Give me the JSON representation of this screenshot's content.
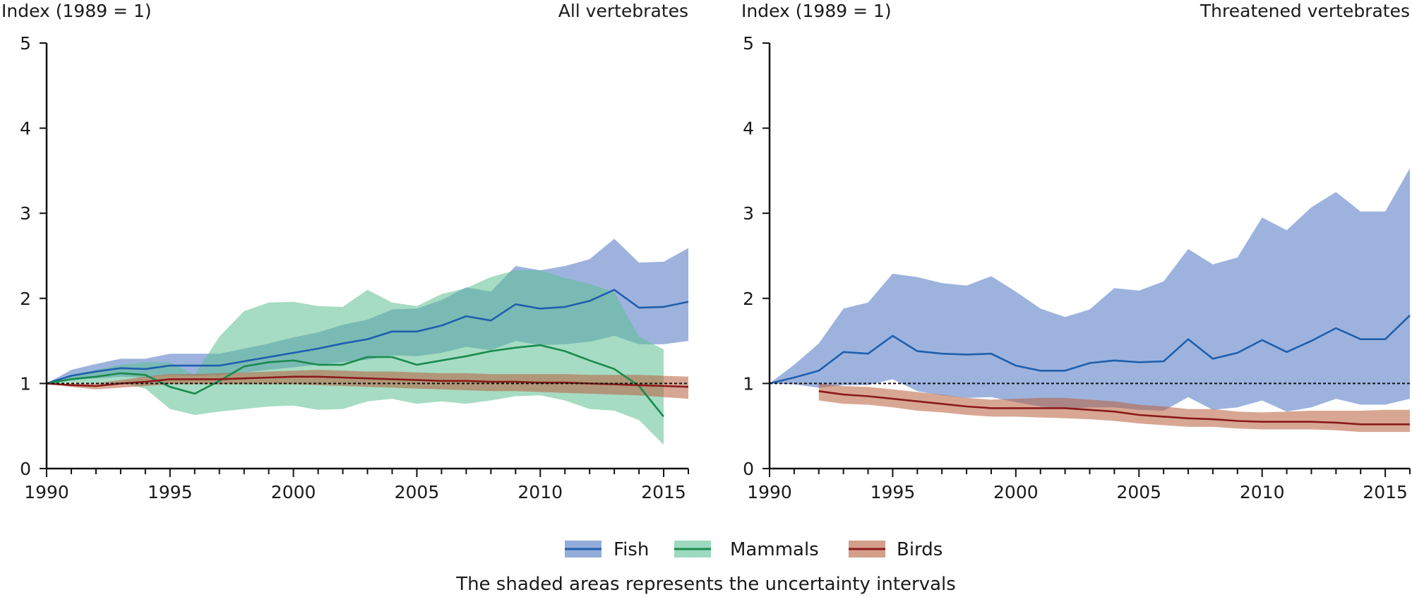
{
  "chart_data": [
    {
      "type": "line",
      "title": "All vertebrates",
      "ylabel": "Index (1989 = 1)",
      "xlabel": "",
      "xlim": [
        1990,
        2016
      ],
      "ylim": [
        0,
        5
      ],
      "xticks": [
        1990,
        1995,
        2000,
        2005,
        2010,
        2015
      ],
      "yticks": [
        0,
        1,
        2,
        3,
        4,
        5
      ],
      "reference_line": 1,
      "series": [
        {
          "name": "Fish",
          "color": "#1f5fad",
          "band_color": "#4d74c2",
          "x": [
            1990,
            1991,
            1992,
            1993,
            1994,
            1995,
            1996,
            1997,
            1998,
            1999,
            2000,
            2001,
            2002,
            2003,
            2004,
            2005,
            2006,
            2007,
            2008,
            2009,
            2010,
            2011,
            2012,
            2013,
            2014,
            2015,
            2016
          ],
          "values": [
            1.0,
            1.09,
            1.14,
            1.18,
            1.17,
            1.21,
            1.21,
            1.21,
            1.26,
            1.31,
            1.36,
            1.41,
            1.47,
            1.52,
            1.61,
            1.61,
            1.68,
            1.79,
            1.74,
            1.93,
            1.88,
            1.9,
            1.97,
            2.1,
            1.89,
            1.9,
            1.96
          ],
          "lower": [
            1.0,
            1.04,
            1.06,
            1.08,
            1.07,
            1.1,
            1.09,
            1.1,
            1.13,
            1.16,
            1.19,
            1.22,
            1.25,
            1.28,
            1.33,
            1.32,
            1.36,
            1.43,
            1.39,
            1.5,
            1.45,
            1.46,
            1.49,
            1.56,
            1.46,
            1.46,
            1.5
          ],
          "upper": [
            1.0,
            1.16,
            1.23,
            1.29,
            1.29,
            1.35,
            1.35,
            1.35,
            1.41,
            1.47,
            1.54,
            1.6,
            1.69,
            1.75,
            1.87,
            1.88,
            1.98,
            2.13,
            2.08,
            2.38,
            2.33,
            2.38,
            2.46,
            2.7,
            2.42,
            2.43,
            2.59
          ]
        },
        {
          "name": "Mammals",
          "color": "#1a8a4e",
          "band_color": "#5cbf92",
          "x": [
            1990,
            1991,
            1992,
            1993,
            1994,
            1995,
            1996,
            1997,
            1998,
            1999,
            2000,
            2001,
            2002,
            2003,
            2004,
            2005,
            2006,
            2007,
            2008,
            2009,
            2010,
            2011,
            2012,
            2013,
            2014,
            2015
          ],
          "values": [
            1.0,
            1.05,
            1.08,
            1.12,
            1.1,
            0.96,
            0.88,
            1.03,
            1.2,
            1.25,
            1.27,
            1.22,
            1.22,
            1.31,
            1.31,
            1.22,
            1.27,
            1.32,
            1.38,
            1.42,
            1.45,
            1.38,
            1.27,
            1.17,
            0.97,
            0.61
          ],
          "lower": [
            1.0,
            1.01,
            1.0,
            1.01,
            0.94,
            0.7,
            0.63,
            0.67,
            0.7,
            0.73,
            0.74,
            0.69,
            0.7,
            0.79,
            0.82,
            0.76,
            0.79,
            0.76,
            0.8,
            0.85,
            0.86,
            0.8,
            0.7,
            0.68,
            0.57,
            0.28
          ],
          "upper": [
            1.0,
            1.1,
            1.16,
            1.22,
            1.25,
            1.25,
            1.1,
            1.55,
            1.85,
            1.95,
            1.96,
            1.91,
            1.9,
            2.1,
            1.95,
            1.91,
            2.05,
            2.12,
            2.25,
            2.33,
            2.33,
            2.24,
            2.17,
            2.07,
            1.55,
            1.4
          ]
        },
        {
          "name": "Birds",
          "color": "#8b1a1a",
          "band_color": "#b85f3c",
          "x": [
            1990,
            1991,
            1992,
            1993,
            1994,
            1995,
            1996,
            1997,
            1998,
            1999,
            2000,
            2001,
            2002,
            2003,
            2004,
            2005,
            2006,
            2007,
            2008,
            2009,
            2010,
            2011,
            2012,
            2013,
            2014,
            2015,
            2016
          ],
          "values": [
            1.0,
            0.98,
            0.97,
            1.0,
            1.02,
            1.05,
            1.05,
            1.05,
            1.06,
            1.07,
            1.08,
            1.08,
            1.07,
            1.06,
            1.05,
            1.04,
            1.03,
            1.03,
            1.02,
            1.02,
            1.01,
            1.01,
            1.0,
            0.99,
            0.98,
            0.97,
            0.96
          ],
          "lower": [
            1.0,
            0.96,
            0.93,
            0.95,
            0.97,
            0.99,
            0.99,
            0.99,
            0.99,
            0.99,
            0.99,
            0.98,
            0.97,
            0.96,
            0.95,
            0.94,
            0.93,
            0.92,
            0.91,
            0.91,
            0.9,
            0.89,
            0.88,
            0.87,
            0.86,
            0.84,
            0.82
          ],
          "upper": [
            1.0,
            1.0,
            1.0,
            1.04,
            1.08,
            1.11,
            1.11,
            1.12,
            1.13,
            1.14,
            1.15,
            1.16,
            1.15,
            1.14,
            1.14,
            1.13,
            1.12,
            1.12,
            1.11,
            1.11,
            1.11,
            1.11,
            1.1,
            1.1,
            1.1,
            1.09,
            1.08
          ]
        }
      ]
    },
    {
      "type": "line",
      "title": "Threatened vertebrates",
      "ylabel": "Index (1989 = 1)",
      "xlabel": "",
      "xlim": [
        1990,
        2016
      ],
      "ylim": [
        0,
        5
      ],
      "xticks": [
        1990,
        1995,
        2000,
        2005,
        2010,
        2015
      ],
      "yticks": [
        0,
        1,
        2,
        3,
        4,
        5
      ],
      "reference_line": 1,
      "series": [
        {
          "name": "Fish",
          "color": "#1f5fad",
          "band_color": "#4d74c2",
          "x": [
            1990,
            1991,
            1992,
            1993,
            1994,
            1995,
            1996,
            1997,
            1998,
            1999,
            2000,
            2001,
            2002,
            2003,
            2004,
            2005,
            2006,
            2007,
            2008,
            2009,
            2010,
            2011,
            2012,
            2013,
            2014,
            2015,
            2016
          ],
          "values": [
            1.0,
            1.07,
            1.15,
            1.37,
            1.35,
            1.56,
            1.38,
            1.35,
            1.34,
            1.35,
            1.21,
            1.15,
            1.15,
            1.24,
            1.27,
            1.25,
            1.26,
            1.52,
            1.29,
            1.36,
            1.51,
            1.37,
            1.5,
            1.65,
            1.52,
            1.52,
            1.8
          ],
          "lower": [
            1.0,
            0.99,
            0.95,
            0.98,
            0.98,
            1.05,
            0.91,
            0.86,
            0.83,
            0.84,
            0.78,
            0.73,
            0.7,
            0.72,
            0.72,
            0.69,
            0.68,
            0.84,
            0.69,
            0.72,
            0.8,
            0.67,
            0.72,
            0.82,
            0.75,
            0.75,
            0.82
          ],
          "upper": [
            1.0,
            1.22,
            1.47,
            1.88,
            1.95,
            2.29,
            2.25,
            2.18,
            2.15,
            2.26,
            2.08,
            1.88,
            1.78,
            1.87,
            2.12,
            2.09,
            2.2,
            2.58,
            2.4,
            2.48,
            2.95,
            2.8,
            3.07,
            3.25,
            3.02,
            3.02,
            3.53
          ]
        },
        {
          "name": "Birds",
          "color": "#8b1a1a",
          "band_color": "#b85f3c",
          "x": [
            1992,
            1993,
            1994,
            1995,
            1996,
            1997,
            1998,
            1999,
            2000,
            2001,
            2002,
            2003,
            2004,
            2005,
            2006,
            2007,
            2008,
            2009,
            2010,
            2011,
            2012,
            2013,
            2014,
            2015,
            2016
          ],
          "values": [
            0.91,
            0.87,
            0.85,
            0.82,
            0.79,
            0.76,
            0.73,
            0.71,
            0.71,
            0.71,
            0.71,
            0.69,
            0.67,
            0.63,
            0.61,
            0.59,
            0.58,
            0.56,
            0.55,
            0.55,
            0.55,
            0.54,
            0.52,
            0.52,
            0.52
          ],
          "lower": [
            0.8,
            0.76,
            0.75,
            0.72,
            0.68,
            0.66,
            0.63,
            0.61,
            0.61,
            0.6,
            0.59,
            0.58,
            0.56,
            0.53,
            0.51,
            0.49,
            0.49,
            0.47,
            0.46,
            0.46,
            0.46,
            0.45,
            0.43,
            0.43,
            0.43
          ],
          "upper": [
            1.0,
            0.97,
            0.96,
            0.93,
            0.9,
            0.87,
            0.83,
            0.81,
            0.82,
            0.83,
            0.83,
            0.81,
            0.79,
            0.75,
            0.73,
            0.7,
            0.7,
            0.67,
            0.66,
            0.67,
            0.68,
            0.68,
            0.68,
            0.69,
            0.69
          ]
        }
      ]
    }
  ],
  "legend": {
    "items": [
      {
        "label": "Fish",
        "color": "#1f5fad",
        "band_color": "#4d74c2"
      },
      {
        "label": "Mammals",
        "color": "#1a8a4e",
        "band_color": "#5cbf92"
      },
      {
        "label": "Birds",
        "color": "#8b1a1a",
        "band_color": "#b85f3c"
      }
    ]
  },
  "footnote": "The shaded areas represents the uncertainty intervals"
}
